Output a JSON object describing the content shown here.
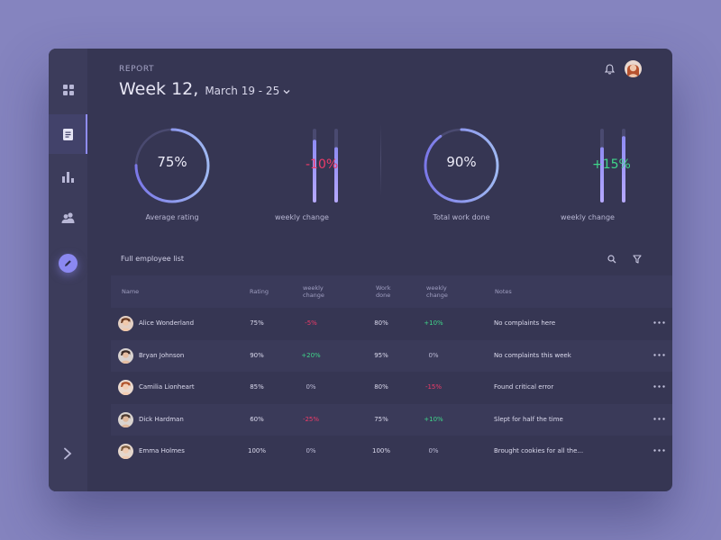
{
  "header": {
    "section": "REPORT",
    "week": "Week 12,",
    "range": "March 19 - 25"
  },
  "sidebar": {
    "items": [
      {
        "name": "dashboard",
        "icon": "grid-icon"
      },
      {
        "name": "report",
        "icon": "document-icon",
        "active": true
      },
      {
        "name": "stats",
        "icon": "bar-chart-icon"
      },
      {
        "name": "users",
        "icon": "users-icon"
      }
    ],
    "action_icon": "pencil-icon",
    "collapse_icon": "chevron-right-icon"
  },
  "stats": {
    "rating": {
      "value": "75%",
      "percent": 75,
      "label": "Average rating"
    },
    "rating_change": {
      "value": "-10%",
      "label": "weekly change",
      "prev": 0.85,
      "curr": 0.75
    },
    "work": {
      "value": "90%",
      "percent": 90,
      "label": "Total work done"
    },
    "work_change": {
      "value": "+15%",
      "label": "weekly change",
      "prev": 0.75,
      "curr": 0.9
    }
  },
  "list": {
    "title": "Full employee list",
    "columns": {
      "name": "Name",
      "rating": "Rating",
      "rating_change_1": "weekly",
      "rating_change_2": "change",
      "work_1": "Work",
      "work_2": "done",
      "work_change_1": "weekly",
      "work_change_2": "change",
      "notes": "Notes"
    },
    "rows": [
      {
        "name": "Alice Wonderland",
        "rating": "75%",
        "rating_change": "-5%",
        "work": "80%",
        "work_change": "+10%",
        "notes": "No complaints here"
      },
      {
        "name": "Bryan Johnson",
        "rating": "90%",
        "rating_change": "+20%",
        "work": "95%",
        "work_change": "0%",
        "notes": "No complaints this week"
      },
      {
        "name": "Camilia Lionheart",
        "rating": "85%",
        "rating_change": "0%",
        "work": "80%",
        "work_change": "-15%",
        "notes": "Found critical error"
      },
      {
        "name": "Dick Hardman",
        "rating": "60%",
        "rating_change": "-25%",
        "work": "75%",
        "work_change": "+10%",
        "notes": "Slept for half the time"
      },
      {
        "name": "Emma Holmes",
        "rating": "100%",
        "rating_change": "0%",
        "work": "100%",
        "work_change": "0%",
        "notes": "Brought cookies for all the..."
      }
    ]
  },
  "colors": {
    "accent": "#8b88f1",
    "positive": "#3fd68a",
    "negative": "#ef3b69"
  }
}
